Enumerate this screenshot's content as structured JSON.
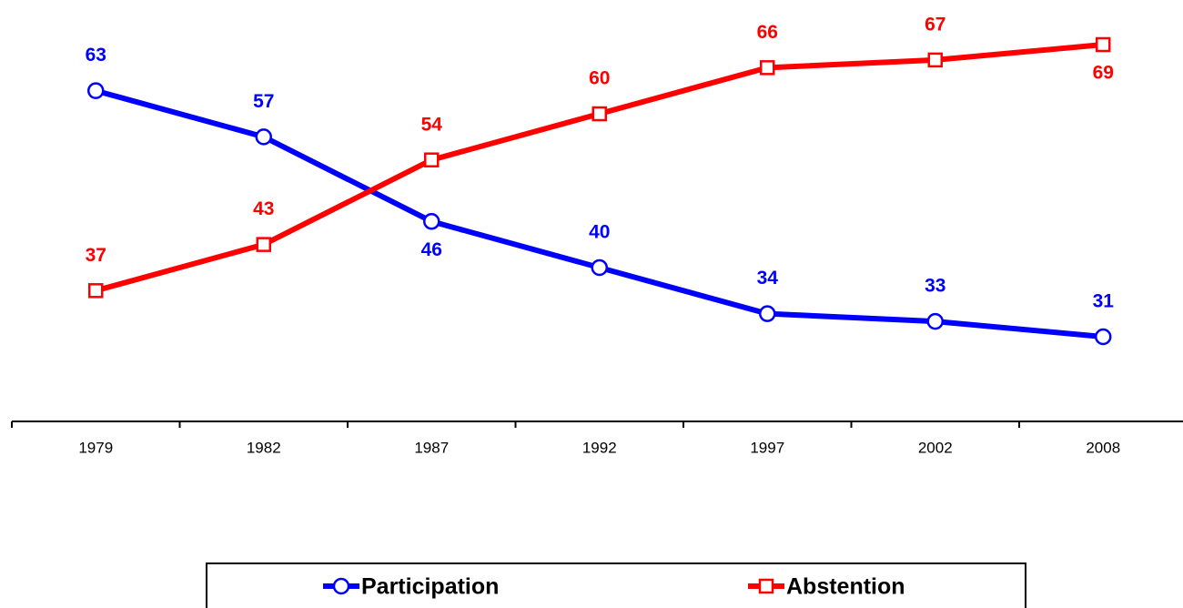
{
  "chart_data": {
    "type": "line",
    "categories": [
      "1979",
      "1982",
      "1987",
      "1992",
      "1997",
      "2002",
      "2008"
    ],
    "series": [
      {
        "name": "Participation",
        "color": "#0000ff",
        "marker": "circle",
        "values": [
          63,
          57,
          46,
          40,
          34,
          33,
          31
        ]
      },
      {
        "name": "Abstention",
        "color": "#ff0000",
        "marker": "square",
        "values": [
          37,
          43,
          54,
          60,
          66,
          67,
          69
        ]
      }
    ],
    "legend": "bottom"
  }
}
